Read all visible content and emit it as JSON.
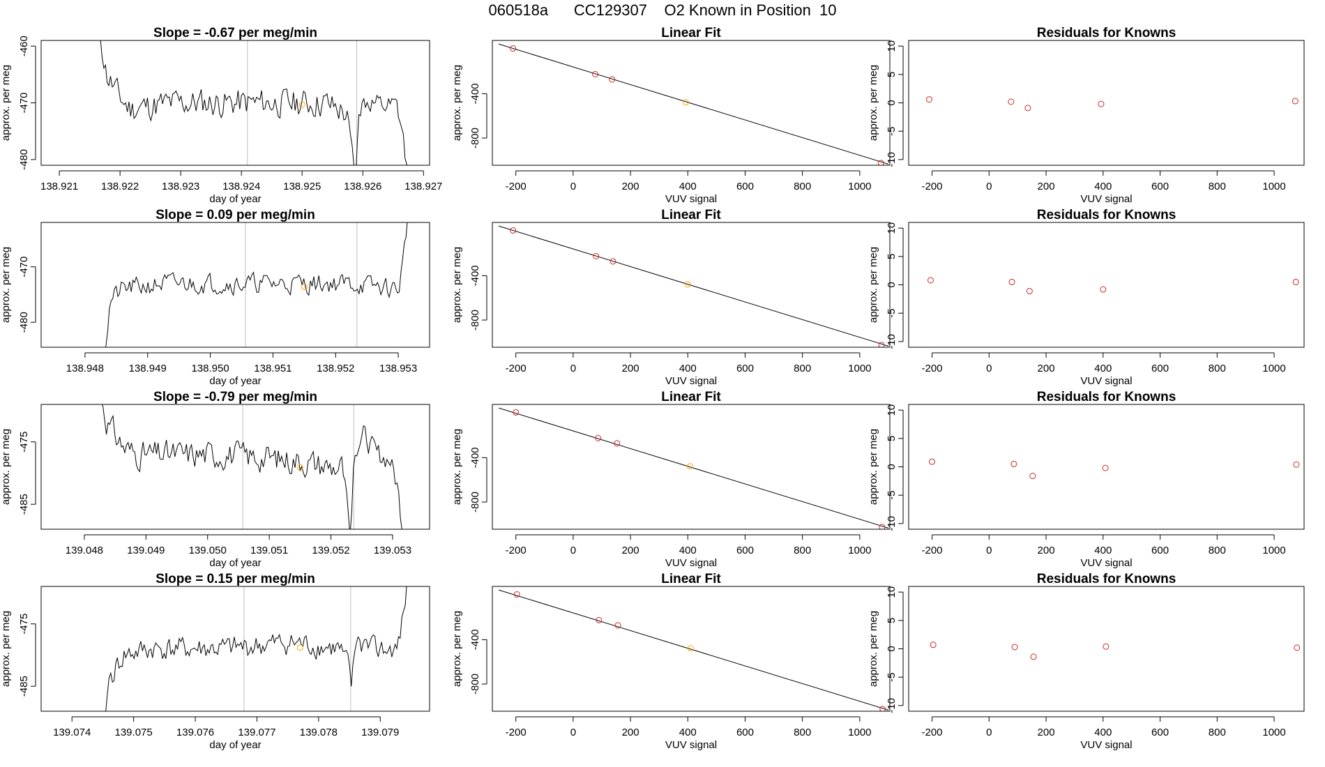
{
  "page": {
    "title_parts": [
      "060518a",
      "CC129307",
      "O2 Known in Position  10"
    ]
  },
  "colors": {
    "line": "#000000",
    "sample_point": "#ffa500",
    "known_point": "#cd2626",
    "fit_highlight": "#ffa500",
    "vline": "#bebebe",
    "axis": "#000000"
  },
  "chart_data": [
    {
      "type": "line",
      "panel": "time-series",
      "row": 1,
      "title": "Slope =  -0.67  per meg/min",
      "xlabel": "day of year",
      "ylabel": "approx. per meg",
      "xlim": [
        138.9207,
        138.9271
      ],
      "ylim": [
        -481,
        -459
      ],
      "xticks": [
        138.921,
        138.922,
        138.923,
        138.924,
        138.925,
        138.926,
        138.927
      ],
      "xtick_labels": [
        "138.921",
        "138.922",
        "138.923",
        "138.924",
        "138.925",
        "138.926",
        "138.927"
      ],
      "yticks": [
        -460,
        -470,
        -480
      ],
      "ytick_labels": [
        "-460",
        "-470",
        "-480"
      ],
      "vlines": [
        138.9241,
        138.9259
      ],
      "sample_point": {
        "x": 138.925,
        "y": -470.3
      },
      "segments": [
        {
          "start": 138.92165,
          "end": 138.92588,
          "anchors": [
            [
              0,
              -456
            ],
            [
              0.03,
              -465
            ],
            [
              0.08,
              -469
            ],
            [
              0.12,
              -471
            ],
            [
              0.3,
              -470
            ],
            [
              0.6,
              -470
            ],
            [
              0.88,
              -470
            ],
            [
              0.93,
              -471
            ],
            [
              0.965,
              -472
            ],
            [
              1,
              -484
            ]
          ],
          "noise": 2.3,
          "seed": 11
        },
        {
          "start": 138.92588,
          "end": 138.92675,
          "anchors": [
            [
              0,
              -484
            ],
            [
              0.05,
              -471
            ],
            [
              0.2,
              -470
            ],
            [
              0.5,
              -471
            ],
            [
              0.78,
              -471
            ],
            [
              0.88,
              -475
            ],
            [
              1,
              -484
            ]
          ],
          "noise": 1.8,
          "seed": 12
        }
      ]
    },
    {
      "type": "scatter",
      "panel": "linear-fit",
      "row": 1,
      "title": "Linear Fit",
      "xlabel": "VUV signal",
      "ylabel": "approx. per meg",
      "xlim": [
        -282,
        1105
      ],
      "ylim": [
        -1045,
        80
      ],
      "xticks": [
        -200,
        0,
        200,
        400,
        600,
        800,
        1000
      ],
      "xtick_labels": [
        "-200",
        "0",
        "200",
        "400",
        "600",
        "800",
        "1000"
      ],
      "yticks": [
        -400,
        -800
      ],
      "ytick_labels": [
        "-400",
        "-800"
      ],
      "fit_line": [
        [
          -260,
          48
        ],
        [
          1100,
          -1035
        ]
      ],
      "points": [
        {
          "x": -210,
          "y": 8,
          "known": true
        },
        {
          "x": 77,
          "y": -224,
          "known": true
        },
        {
          "x": 136,
          "y": -271,
          "known": true
        },
        {
          "x": 393,
          "y": -478,
          "known": false
        },
        {
          "x": 1074,
          "y": -1025,
          "known": true
        }
      ]
    },
    {
      "type": "scatter",
      "panel": "residuals",
      "row": 1,
      "title": "Residuals for Knowns",
      "xlabel": "VUV signal",
      "ylabel": "approx. per meg",
      "xlim": [
        -282,
        1105
      ],
      "ylim": [
        -11,
        11
      ],
      "xticks": [
        -200,
        0,
        200,
        400,
        600,
        800,
        1000
      ],
      "xtick_labels": [
        "-200",
        "0",
        "200",
        "400",
        "600",
        "800",
        "1000"
      ],
      "yticks": [
        10,
        5,
        0,
        -5,
        -10
      ],
      "ytick_labels": [
        "10",
        "5",
        "0",
        "-5",
        "-10"
      ],
      "points": [
        {
          "x": -210,
          "y": 0.6
        },
        {
          "x": 77,
          "y": 0.2
        },
        {
          "x": 136,
          "y": -0.9
        },
        {
          "x": 393,
          "y": -0.2
        },
        {
          "x": 1074,
          "y": 0.3
        }
      ]
    },
    {
      "type": "line",
      "panel": "time-series",
      "row": 2,
      "title": "Slope =  0.09  per meg/min",
      "xlabel": "day of year",
      "ylabel": "approx. per meg",
      "xlim": [
        138.9473,
        138.9535
      ],
      "ylim": [
        -484.5,
        -462
      ],
      "xticks": [
        138.948,
        138.949,
        138.95,
        138.951,
        138.952,
        138.953
      ],
      "xtick_labels": [
        "138.948",
        "138.949",
        "138.950",
        "138.951",
        "138.952",
        "138.953"
      ],
      "yticks": [
        -470,
        -480
      ],
      "ytick_labels": [
        "-470",
        "-480"
      ],
      "vlines": [
        138.95056,
        138.95234
      ],
      "sample_point": {
        "x": 138.9515,
        "y": -473.6
      },
      "segments": [
        {
          "start": 138.94831,
          "end": 138.95315,
          "anchors": [
            [
              0,
              -486
            ],
            [
              0.02,
              -476
            ],
            [
              0.06,
              -474
            ],
            [
              0.2,
              -473
            ],
            [
              0.5,
              -473
            ],
            [
              0.8,
              -473
            ],
            [
              0.97,
              -474
            ],
            [
              0.985,
              -469
            ],
            [
              1,
              -461
            ]
          ],
          "noise": 1.6,
          "seed": 21
        }
      ]
    },
    {
      "type": "scatter",
      "panel": "linear-fit",
      "row": 2,
      "title": "Linear Fit",
      "xlabel": "VUV signal",
      "ylabel": "approx. per meg",
      "xlim": [
        -282,
        1105
      ],
      "ylim": [
        -1045,
        80
      ],
      "xticks": [
        -200,
        0,
        200,
        400,
        600,
        800,
        1000
      ],
      "xtick_labels": [
        "-200",
        "0",
        "200",
        "400",
        "600",
        "800",
        "1000"
      ],
      "yticks": [
        -400,
        -800
      ],
      "ytick_labels": [
        "-400",
        "-800"
      ],
      "fit_line": [
        [
          -260,
          48
        ],
        [
          1100,
          -1035
        ]
      ],
      "points": [
        {
          "x": -210,
          "y": 8,
          "known": true
        },
        {
          "x": 80,
          "y": -224,
          "known": true
        },
        {
          "x": 139,
          "y": -271,
          "known": true
        },
        {
          "x": 400,
          "y": -478,
          "known": false
        },
        {
          "x": 1076,
          "y": -1025,
          "known": true
        }
      ]
    },
    {
      "type": "scatter",
      "panel": "residuals",
      "row": 2,
      "title": "Residuals for Knowns",
      "xlabel": "VUV signal",
      "ylabel": "approx. per meg",
      "xlim": [
        -282,
        1105
      ],
      "ylim": [
        -11,
        11
      ],
      "xticks": [
        -200,
        0,
        200,
        400,
        600,
        800,
        1000
      ],
      "xtick_labels": [
        "-200",
        "0",
        "200",
        "400",
        "600",
        "800",
        "1000"
      ],
      "yticks": [
        10,
        5,
        0,
        -5,
        -10
      ],
      "ytick_labels": [
        "10",
        "5",
        "0",
        "-5",
        "-10"
      ],
      "points": [
        {
          "x": -205,
          "y": 0.8
        },
        {
          "x": 80,
          "y": 0.5
        },
        {
          "x": 142,
          "y": -1.1
        },
        {
          "x": 400,
          "y": -0.8
        },
        {
          "x": 1076,
          "y": 0.5
        }
      ]
    },
    {
      "type": "line",
      "panel": "time-series",
      "row": 3,
      "title": "Slope =  -0.79  per meg/min",
      "xlabel": "day of year",
      "ylabel": "approx. per meg",
      "xlim": [
        139.0473,
        139.0536
      ],
      "ylim": [
        -489,
        -469
      ],
      "xticks": [
        139.048,
        139.049,
        139.05,
        139.051,
        139.052,
        139.053
      ],
      "xtick_labels": [
        "139.048",
        "139.049",
        "139.050",
        "139.051",
        "139.052",
        "139.053"
      ],
      "yticks": [
        -475,
        -485
      ],
      "ytick_labels": [
        "-475",
        "-485"
      ],
      "vlines": [
        139.05057,
        139.05237
      ],
      "sample_point": {
        "x": 139.0515,
        "y": -479.1
      },
      "segments": [
        {
          "start": 139.04825,
          "end": 139.05231,
          "anchors": [
            [
              0,
              -466
            ],
            [
              0.03,
              -472
            ],
            [
              0.1,
              -476
            ],
            [
              0.15,
              -477
            ],
            [
              0.5,
              -477
            ],
            [
              0.8,
              -478
            ],
            [
              0.93,
              -479
            ],
            [
              0.97,
              -479
            ],
            [
              1,
              -490
            ]
          ],
          "noise": 2.0,
          "seed": 31
        },
        {
          "start": 139.05231,
          "end": 139.05318,
          "anchors": [
            [
              0,
              -490
            ],
            [
              0.08,
              -476
            ],
            [
              0.25,
              -474
            ],
            [
              0.5,
              -477
            ],
            [
              0.75,
              -478
            ],
            [
              0.88,
              -482
            ],
            [
              1,
              -490
            ]
          ],
          "noise": 1.6,
          "seed": 32
        }
      ]
    },
    {
      "type": "scatter",
      "panel": "linear-fit",
      "row": 3,
      "title": "Linear Fit",
      "xlabel": "VUV signal",
      "ylabel": "approx. per meg",
      "xlim": [
        -282,
        1105
      ],
      "ylim": [
        -1045,
        80
      ],
      "xticks": [
        -200,
        0,
        200,
        400,
        600,
        800,
        1000
      ],
      "xtick_labels": [
        "-200",
        "0",
        "200",
        "400",
        "600",
        "800",
        "1000"
      ],
      "yticks": [
        -400,
        -800
      ],
      "ytick_labels": [
        "-400",
        "-800"
      ],
      "fit_line": [
        [
          -260,
          48
        ],
        [
          1100,
          -1035
        ]
      ],
      "points": [
        {
          "x": -200,
          "y": 8,
          "known": true
        },
        {
          "x": 87,
          "y": -224,
          "known": true
        },
        {
          "x": 153,
          "y": -271,
          "known": true
        },
        {
          "x": 408,
          "y": -478,
          "known": false
        },
        {
          "x": 1078,
          "y": -1025,
          "known": true
        }
      ]
    },
    {
      "type": "scatter",
      "panel": "residuals",
      "row": 3,
      "title": "Residuals for Knowns",
      "xlabel": "VUV signal",
      "ylabel": "approx. per meg",
      "xlim": [
        -282,
        1105
      ],
      "ylim": [
        -11,
        11
      ],
      "xticks": [
        -200,
        0,
        200,
        400,
        600,
        800,
        1000
      ],
      "xtick_labels": [
        "-200",
        "0",
        "200",
        "400",
        "600",
        "800",
        "1000"
      ],
      "yticks": [
        10,
        5,
        0,
        -5,
        -10
      ],
      "ytick_labels": [
        "10",
        "5",
        "0",
        "-5",
        "-10"
      ],
      "points": [
        {
          "x": -200,
          "y": 0.9
        },
        {
          "x": 87,
          "y": 0.5
        },
        {
          "x": 153,
          "y": -1.6
        },
        {
          "x": 408,
          "y": -0.2
        },
        {
          "x": 1078,
          "y": 0.4
        }
      ]
    },
    {
      "type": "line",
      "panel": "time-series",
      "row": 4,
      "title": "Slope =  0.15  per meg/min",
      "xlabel": "day of year",
      "ylabel": "approx. per meg",
      "xlim": [
        139.0735,
        139.0798
      ],
      "ylim": [
        -489,
        -469
      ],
      "xticks": [
        139.074,
        139.075,
        139.076,
        139.077,
        139.078,
        139.079
      ],
      "xtick_labels": [
        "139.074",
        "139.075",
        "139.076",
        "139.077",
        "139.078",
        "139.079"
      ],
      "yticks": [
        -475,
        -485
      ],
      "ytick_labels": [
        "-475",
        "-485"
      ],
      "vlines": [
        139.07679,
        139.07852
      ],
      "sample_point": {
        "x": 139.0777,
        "y": -478.8
      },
      "segments": [
        {
          "start": 139.07452,
          "end": 139.07853,
          "anchors": [
            [
              0,
              -490
            ],
            [
              0.02,
              -484
            ],
            [
              0.08,
              -480
            ],
            [
              0.2,
              -479
            ],
            [
              0.5,
              -479
            ],
            [
              0.75,
              -478
            ],
            [
              0.95,
              -479
            ],
            [
              0.99,
              -482
            ],
            [
              1,
              -485
            ]
          ],
          "noise": 1.7,
          "seed": 41
        },
        {
          "start": 139.07853,
          "end": 139.07946,
          "anchors": [
            [
              0,
              -485
            ],
            [
              0.1,
              -478
            ],
            [
              0.4,
              -479
            ],
            [
              0.8,
              -479
            ],
            [
              0.9,
              -474
            ],
            [
              1,
              -467
            ]
          ],
          "noise": 1.6,
          "seed": 42
        }
      ]
    },
    {
      "type": "scatter",
      "panel": "linear-fit",
      "row": 4,
      "title": "Linear Fit",
      "xlabel": "VUV signal",
      "ylabel": "approx. per meg",
      "xlim": [
        -282,
        1105
      ],
      "ylim": [
        -1045,
        80
      ],
      "xticks": [
        -200,
        0,
        200,
        400,
        600,
        800,
        1000
      ],
      "xtick_labels": [
        "-200",
        "0",
        "200",
        "400",
        "600",
        "800",
        "1000"
      ],
      "yticks": [
        -400,
        -800
      ],
      "ytick_labels": [
        "-400",
        "-800"
      ],
      "fit_line": [
        [
          -260,
          48
        ],
        [
          1100,
          -1035
        ]
      ],
      "points": [
        {
          "x": -196,
          "y": 8,
          "known": true
        },
        {
          "x": 90,
          "y": -224,
          "known": true
        },
        {
          "x": 156,
          "y": -271,
          "known": true
        },
        {
          "x": 410,
          "y": -478,
          "known": false
        },
        {
          "x": 1080,
          "y": -1025,
          "known": true
        }
      ]
    },
    {
      "type": "scatter",
      "panel": "residuals",
      "row": 4,
      "title": "Residuals for Knowns",
      "xlabel": "VUV signal",
      "ylabel": "approx. per meg",
      "xlim": [
        -282,
        1105
      ],
      "ylim": [
        -11,
        11
      ],
      "xticks": [
        -200,
        0,
        200,
        400,
        600,
        800,
        1000
      ],
      "xtick_labels": [
        "-200",
        "0",
        "200",
        "400",
        "600",
        "800",
        "1000"
      ],
      "yticks": [
        10,
        5,
        0,
        -5,
        -10
      ],
      "ytick_labels": [
        "10",
        "5",
        "0",
        "-5",
        "-10"
      ],
      "points": [
        {
          "x": -196,
          "y": 0.7
        },
        {
          "x": 90,
          "y": 0.3
        },
        {
          "x": 156,
          "y": -1.4
        },
        {
          "x": 410,
          "y": 0.4
        },
        {
          "x": 1080,
          "y": 0.2
        }
      ]
    }
  ]
}
